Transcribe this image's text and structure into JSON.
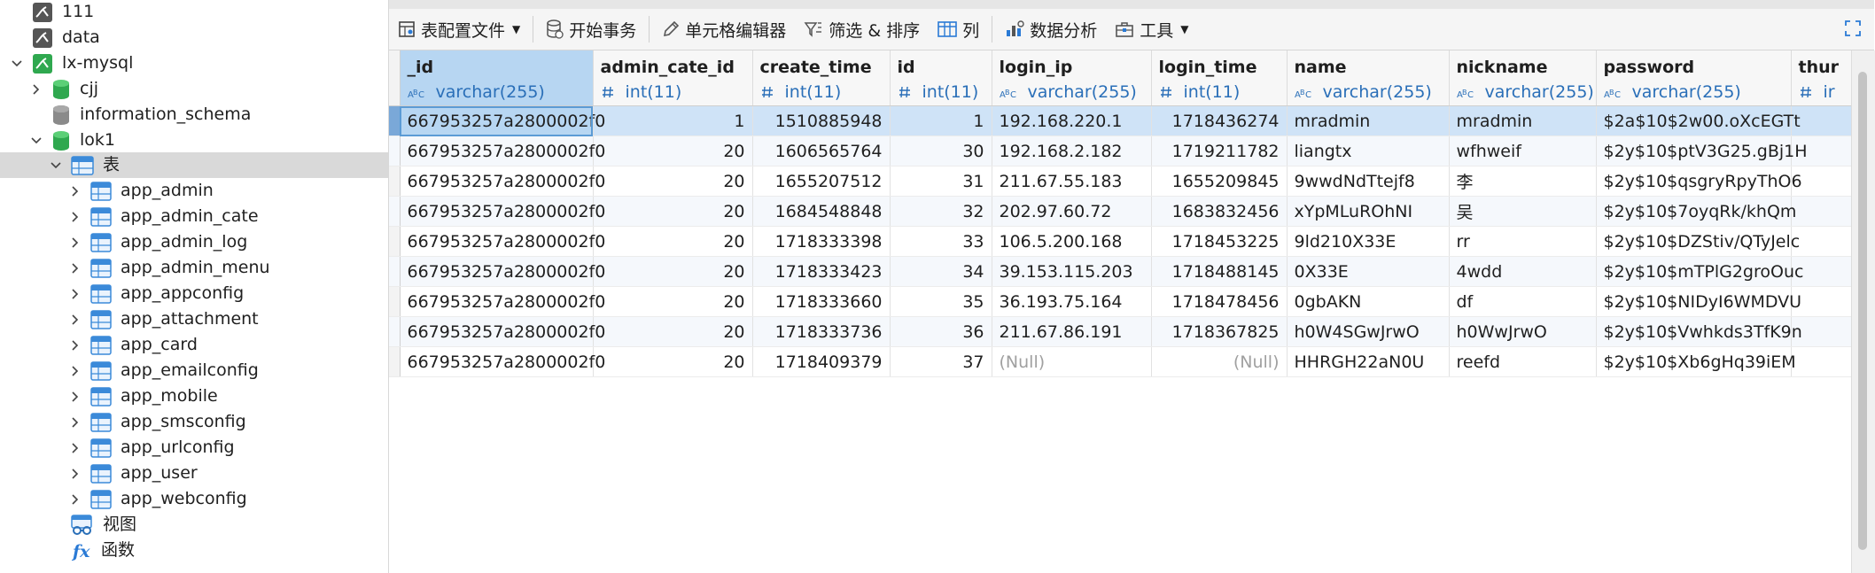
{
  "sidebar": {
    "items": [
      {
        "label": "111",
        "icon": "connection-icon"
      },
      {
        "label": "data",
        "icon": "connection-icon"
      },
      {
        "label": "lx-mysql",
        "icon": "connection-icon"
      },
      {
        "label": "cjj",
        "icon": "database-icon"
      },
      {
        "label": "information_schema",
        "icon": "database-icon"
      },
      {
        "label": "lok1",
        "icon": "database-icon"
      },
      {
        "label": "表",
        "icon": "tables-folder-icon"
      },
      {
        "label": "app_admin",
        "icon": "table-icon"
      },
      {
        "label": "app_admin_cate",
        "icon": "table-icon"
      },
      {
        "label": "app_admin_log",
        "icon": "table-icon"
      },
      {
        "label": "app_admin_menu",
        "icon": "table-icon"
      },
      {
        "label": "app_appconfig",
        "icon": "table-icon"
      },
      {
        "label": "app_attachment",
        "icon": "table-icon"
      },
      {
        "label": "app_card",
        "icon": "table-icon"
      },
      {
        "label": "app_emailconfig",
        "icon": "table-icon"
      },
      {
        "label": "app_mobile",
        "icon": "table-icon"
      },
      {
        "label": "app_smsconfig",
        "icon": "table-icon"
      },
      {
        "label": "app_urlconfig",
        "icon": "table-icon"
      },
      {
        "label": "app_user",
        "icon": "table-icon"
      },
      {
        "label": "app_webconfig",
        "icon": "table-icon"
      },
      {
        "label": "视图",
        "icon": "view-icon"
      },
      {
        "label": "函数",
        "icon": "function-icon"
      }
    ]
  },
  "toolbar": {
    "table_config": "表配置文件",
    "begin_transaction": "开始事务",
    "cell_editor": "单元格编辑器",
    "filter_sort": "筛选 & 排序",
    "columns": "列",
    "data_analysis": "数据分析",
    "tools": "工具"
  },
  "colors": {
    "selected_column": "#b7d6f2",
    "type_text": "#2a6fb8",
    "null_text": "#a0a0a0"
  },
  "columns": [
    {
      "name": "_id",
      "type": "varchar(255)",
      "kind": "text"
    },
    {
      "name": "admin_cate_id",
      "type": "int(11)",
      "kind": "num"
    },
    {
      "name": "create_time",
      "type": "int(11)",
      "kind": "num"
    },
    {
      "name": "id",
      "type": "int(11)",
      "kind": "num"
    },
    {
      "name": "login_ip",
      "type": "varchar(255)",
      "kind": "text"
    },
    {
      "name": "login_time",
      "type": "int(11)",
      "kind": "num"
    },
    {
      "name": "name",
      "type": "varchar(255)",
      "kind": "text"
    },
    {
      "name": "nickname",
      "type": "varchar(255)",
      "kind": "text"
    },
    {
      "name": "password",
      "type": "varchar(255)",
      "kind": "text"
    },
    {
      "name": "thur",
      "type": "ir",
      "kind": "num"
    }
  ],
  "rows": [
    [
      "667953257a2800002f0",
      "1",
      "1510885948",
      "1",
      "192.168.220.1",
      "1718436274",
      "mradmin",
      "mradmin",
      "$2a$10$2w00.oXcEGTt",
      ""
    ],
    [
      "667953257a2800002f0",
      "20",
      "1606565764",
      "30",
      "192.168.2.182",
      "1719211782",
      "liangtx",
      "wfhweif",
      "$2y$10$ptV3G25.gBj1H",
      ""
    ],
    [
      "667953257a2800002f0",
      "20",
      "1655207512",
      "31",
      "211.67.55.183",
      "1655209845",
      "9wwdNdTtejf8",
      "李",
      "$2y$10$qsgryRpyThO6",
      ""
    ],
    [
      "667953257a2800002f0",
      "20",
      "1684548848",
      "32",
      "202.97.60.72",
      "1683832456",
      "xYpMLuROhNI",
      "吴",
      "$2y$10$7oyqRk/khQm",
      ""
    ],
    [
      "667953257a2800002f0",
      "20",
      "1718333398",
      "33",
      "106.5.200.168",
      "1718453225",
      "9ld210X33E",
      "rr",
      "$2y$10$DZStiv/QTyJelc",
      ""
    ],
    [
      "667953257a2800002f0",
      "20",
      "1718333423",
      "34",
      "39.153.115.203",
      "1718488145",
      "0X33E",
      "4wdd",
      "$2y$10$mTPlG2groOuc",
      ""
    ],
    [
      "667953257a2800002f0",
      "20",
      "1718333660",
      "35",
      "36.193.75.164",
      "1718478456",
      "0gbAKN",
      "df",
      "$2y$10$NIDyI6WMDVU",
      ""
    ],
    [
      "667953257a2800002f0",
      "20",
      "1718333736",
      "36",
      "211.67.86.191",
      "1718367825",
      "h0W4SGwJrwO",
      "h0WwJrwO",
      "$2y$10$Vwhkds3TfK9n",
      ""
    ],
    [
      "667953257a2800002f0",
      "20",
      "1718409379",
      "37",
      "(Null)",
      "(Null)",
      "HHRGH22aN0U",
      "reefd",
      "$2y$10$Xb6gHq39iEM",
      ""
    ]
  ]
}
